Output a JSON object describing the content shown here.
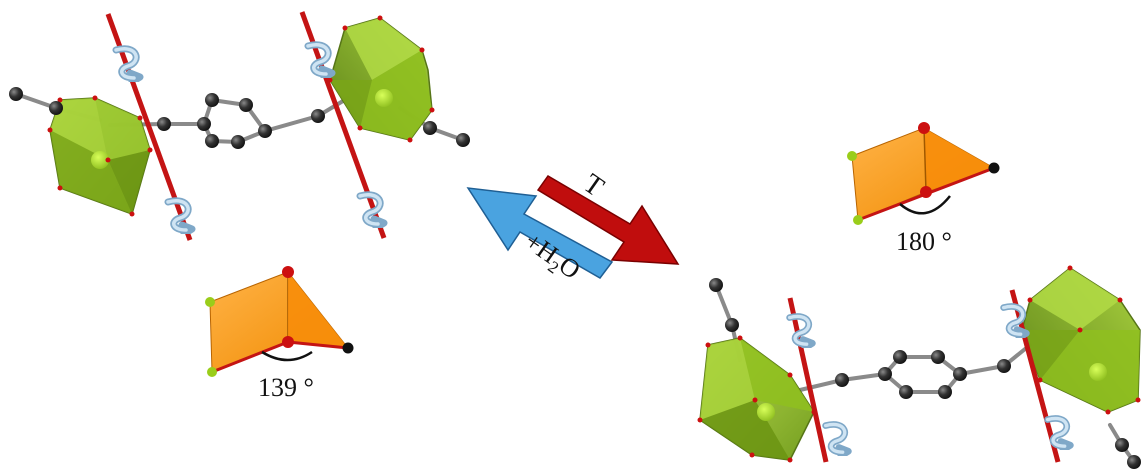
{
  "arrows": {
    "forward_label": "T",
    "reverse_label_main": "+H",
    "reverse_label_sub": "2",
    "reverse_label_tail": "O",
    "forward_color": "#c00d0d",
    "reverse_color": "#4aa3e0"
  },
  "angles": {
    "left_value": "139 °",
    "right_value": "180 °"
  },
  "colors": {
    "octahedron": "#8fbf1f",
    "octahedron_dark": "#5f8a10",
    "tetrahedron": "#f59a1a",
    "oxygen": "#cc1010",
    "carbon": "#2a2a2a",
    "axis": "#c41414",
    "rotation_arrow": "#8fb6d6"
  },
  "icons": [
    "rotation-arrow-icon"
  ]
}
